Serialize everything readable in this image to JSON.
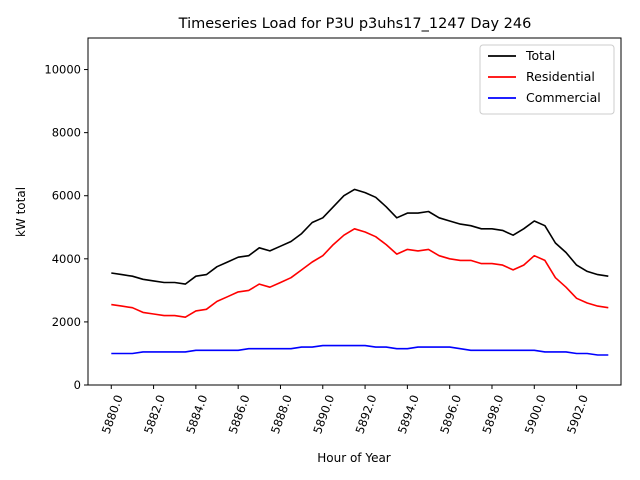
{
  "chart_data": {
    "type": "line",
    "title": "Timeseries Load for P3U p3uhs17_1247  Day 246",
    "xlabel": "Hour of Year",
    "ylabel": "kW total",
    "xlim": [
      5878.9,
      5904.1
    ],
    "ylim": [
      0,
      11000
    ],
    "xticks": [
      5880,
      5882,
      5884,
      5886,
      5888,
      5890,
      5892,
      5894,
      5896,
      5898,
      5900,
      5902
    ],
    "xtick_labels": [
      "5880.0",
      "5882.0",
      "5884.0",
      "5886.0",
      "5888.0",
      "5890.0",
      "5892.0",
      "5894.0",
      "5896.0",
      "5898.0",
      "5900.0",
      "5902.0"
    ],
    "yticks": [
      0,
      2000,
      4000,
      6000,
      8000,
      10000
    ],
    "ytick_labels": [
      "0",
      "2000",
      "4000",
      "6000",
      "8000",
      "10000"
    ],
    "grid": false,
    "legend_position": "top-right",
    "x": [
      5880,
      5880.5,
      5881,
      5881.5,
      5882,
      5882.5,
      5883,
      5883.5,
      5884,
      5884.5,
      5885,
      5885.5,
      5886,
      5886.5,
      5887,
      5887.5,
      5888,
      5888.5,
      5889,
      5889.5,
      5890,
      5890.5,
      5891,
      5891.5,
      5892,
      5892.5,
      5893,
      5893.5,
      5894,
      5894.5,
      5895,
      5895.5,
      5896,
      5896.5,
      5897,
      5897.5,
      5898,
      5898.5,
      5899,
      5899.5,
      5900,
      5900.5,
      5901,
      5901.5,
      5902,
      5902.5,
      5903,
      5903.5
    ],
    "series": [
      {
        "name": "Total",
        "color": "#000000",
        "values": [
          3550,
          3500,
          3450,
          3350,
          3300,
          3250,
          3250,
          3200,
          3450,
          3500,
          3750,
          3900,
          4050,
          4100,
          4350,
          4250,
          4400,
          4550,
          4800,
          5150,
          5300,
          5650,
          6000,
          6200,
          6100,
          5950,
          5650,
          5300,
          5450,
          5450,
          5500,
          5300,
          5200,
          5100,
          5050,
          4950,
          4950,
          4900,
          4750,
          4950,
          5200,
          5050,
          4500,
          4200,
          3800,
          3600,
          3500,
          3450
        ]
      },
      {
        "name": "Residential",
        "color": "#ff0000",
        "values": [
          2550,
          2500,
          2450,
          2300,
          2250,
          2200,
          2200,
          2150,
          2350,
          2400,
          2650,
          2800,
          2950,
          3000,
          3200,
          3100,
          3250,
          3400,
          3650,
          3900,
          4100,
          4450,
          4750,
          4950,
          4850,
          4700,
          4450,
          4150,
          4300,
          4250,
          4300,
          4100,
          4000,
          3950,
          3950,
          3850,
          3850,
          3800,
          3650,
          3800,
          4100,
          3950,
          3400,
          3100,
          2750,
          2600,
          2500,
          2450
        ]
      },
      {
        "name": "Commercial",
        "color": "#0000ff",
        "values": [
          1000,
          1000,
          1000,
          1050,
          1050,
          1050,
          1050,
          1050,
          1100,
          1100,
          1100,
          1100,
          1100,
          1150,
          1150,
          1150,
          1150,
          1150,
          1200,
          1200,
          1250,
          1250,
          1250,
          1250,
          1250,
          1200,
          1200,
          1150,
          1150,
          1200,
          1200,
          1200,
          1200,
          1150,
          1100,
          1100,
          1100,
          1100,
          1100,
          1100,
          1100,
          1050,
          1050,
          1050,
          1000,
          1000,
          950,
          950
        ]
      }
    ]
  }
}
